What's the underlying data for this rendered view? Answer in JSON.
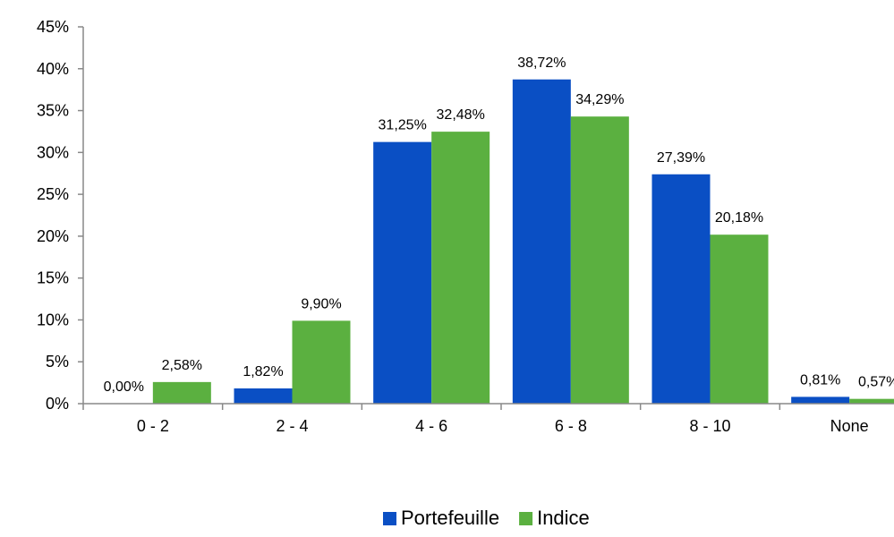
{
  "chart_data": {
    "type": "bar",
    "title": "",
    "xlabel": "",
    "ylabel": "",
    "categories": [
      "0 - 2",
      "2 - 4",
      "4 - 6",
      "6 - 8",
      "8 - 10",
      "None"
    ],
    "ylim": [
      0,
      45
    ],
    "y_ticks": [
      0,
      5,
      10,
      15,
      20,
      25,
      30,
      35,
      40,
      45
    ],
    "y_tick_labels": [
      "0%",
      "5%",
      "10%",
      "15%",
      "20%",
      "25%",
      "30%",
      "35%",
      "40%",
      "45%"
    ],
    "grid": false,
    "legend_position": "bottom",
    "series": [
      {
        "name": "Portefeuille",
        "color": "#0a4fc4",
        "values": [
          0.0,
          1.82,
          31.25,
          38.72,
          27.39,
          0.81
        ],
        "labels": [
          "0,00%",
          "1,82%",
          "31,25%",
          "38,72%",
          "27,39%",
          "0,81%"
        ]
      },
      {
        "name": "Indice",
        "color": "#5bb040",
        "values": [
          2.58,
          9.9,
          32.48,
          34.29,
          20.18,
          0.57
        ],
        "labels": [
          "2,58%",
          "9,90%",
          "32,48%",
          "34,29%",
          "20,18%",
          "0,57%"
        ]
      }
    ]
  }
}
